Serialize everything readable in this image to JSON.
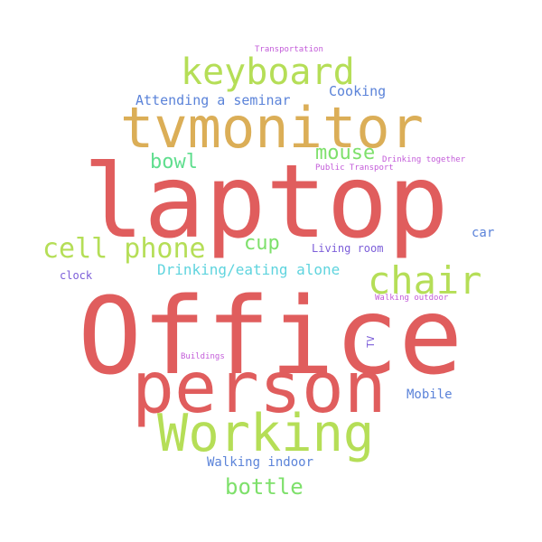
{
  "words": [
    {
      "text": "laptop",
      "color": "#e05d5d"
    },
    {
      "text": "Office",
      "color": "#e05d5d"
    },
    {
      "text": "person",
      "color": "#e05d5d"
    },
    {
      "text": "tvmonitor",
      "color": "#dbae57"
    },
    {
      "text": "Working",
      "color": "#b5de57"
    },
    {
      "text": "keyboard",
      "color": "#b5de57"
    },
    {
      "text": "chair",
      "color": "#b5de57"
    },
    {
      "text": "cell phone",
      "color": "#b5de57"
    },
    {
      "text": "mouse",
      "color": "#7ee06b"
    },
    {
      "text": "bowl",
      "color": "#5fde8e"
    },
    {
      "text": "cup",
      "color": "#7ee06b"
    },
    {
      "text": "bottle",
      "color": "#7ee06b"
    },
    {
      "text": "Drinking/eating alone",
      "color": "#5fd4de"
    },
    {
      "text": "Attending a seminar",
      "color": "#5b83d9"
    },
    {
      "text": "Cooking",
      "color": "#5b83d9"
    },
    {
      "text": "Walking indoor",
      "color": "#5b83d9"
    },
    {
      "text": "Mobile",
      "color": "#5b83d9"
    },
    {
      "text": "car",
      "color": "#5b83d9"
    },
    {
      "text": "clock",
      "color": "#7c5ed9"
    },
    {
      "text": "Living room",
      "color": "#7c5ed9"
    },
    {
      "text": "TV",
      "color": "#7c5ed9"
    },
    {
      "text": "Transportation",
      "color": "#c35bd9"
    },
    {
      "text": "Drinking together",
      "color": "#c35bd9"
    },
    {
      "text": "Public Transport",
      "color": "#c35bd9"
    },
    {
      "text": "Walking outdoor",
      "color": "#c35bd9"
    },
    {
      "text": "Buildings",
      "color": "#c35bd9"
    }
  ]
}
